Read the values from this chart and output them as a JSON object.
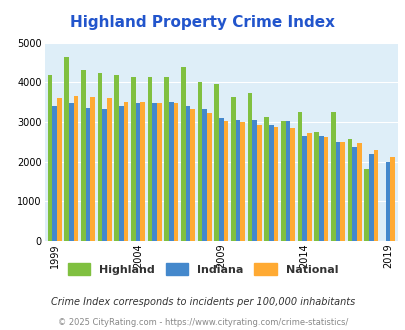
{
  "title": "Highland Property Crime Index",
  "years": [
    1999,
    2000,
    2001,
    2002,
    2003,
    2004,
    2005,
    2006,
    2007,
    2008,
    2009,
    2010,
    2011,
    2012,
    2013,
    2014,
    2015,
    2016,
    2017,
    2018,
    2019
  ],
  "highland": [
    4180,
    4650,
    4310,
    4250,
    4180,
    4130,
    4150,
    4150,
    4380,
    4000,
    3970,
    3640,
    3730,
    3130,
    3020,
    3250,
    2760,
    3260,
    2570,
    1820,
    0
  ],
  "indiana": [
    3400,
    3480,
    3360,
    3340,
    3400,
    3470,
    3480,
    3500,
    3400,
    3340,
    3100,
    3050,
    3060,
    2930,
    3020,
    2650,
    2640,
    2490,
    2380,
    2200,
    1990
  ],
  "national": [
    3600,
    3670,
    3640,
    3600,
    3520,
    3500,
    3480,
    3470,
    3340,
    3220,
    3030,
    2990,
    2920,
    2870,
    2860,
    2720,
    2620,
    2500,
    2460,
    2300,
    2120
  ],
  "highland_color": "#80c040",
  "indiana_color": "#4488cc",
  "national_color": "#ffaa33",
  "plot_bg": "#deeef8",
  "ylim": [
    0,
    5000
  ],
  "yticks": [
    0,
    1000,
    2000,
    3000,
    4000,
    5000
  ],
  "xlabel_tick_years": [
    1999,
    2004,
    2009,
    2014,
    2019
  ],
  "legend_labels": [
    "Highland",
    "Indiana",
    "National"
  ],
  "subtitle": "Crime Index corresponds to incidents per 100,000 inhabitants",
  "footer": "© 2025 CityRating.com - https://www.cityrating.com/crime-statistics/",
  "title_color": "#2255cc",
  "subtitle_color": "#333333",
  "footer_color": "#888888"
}
